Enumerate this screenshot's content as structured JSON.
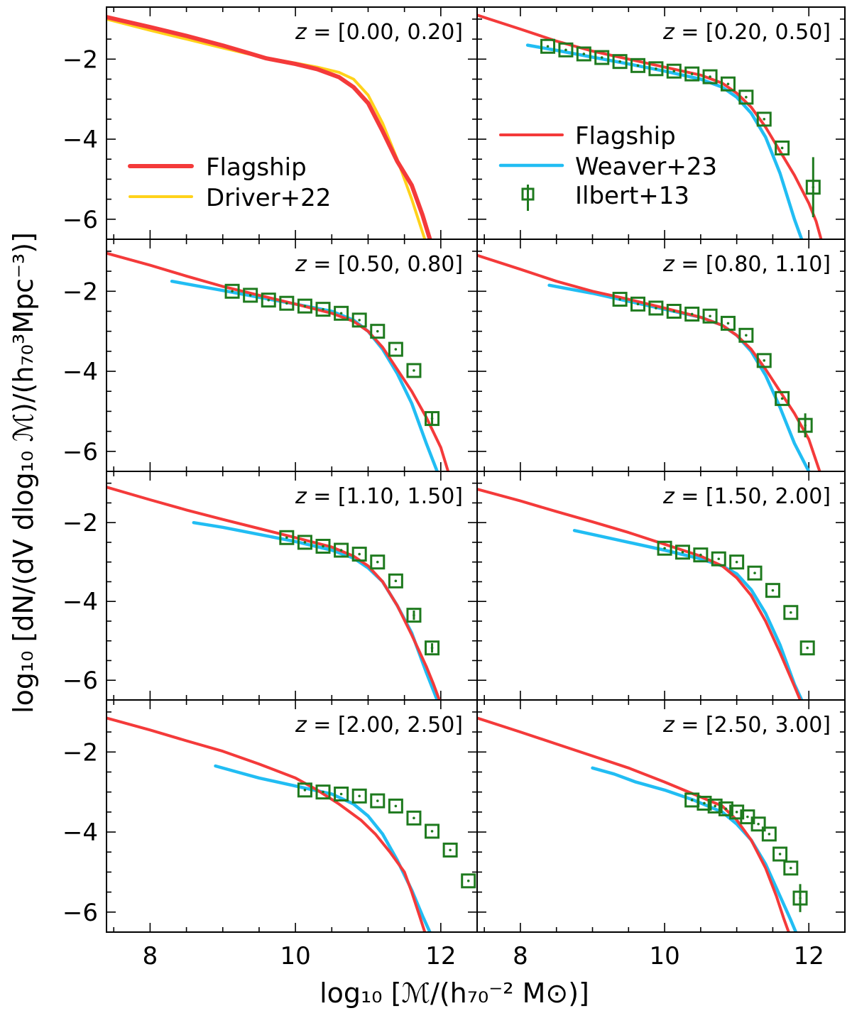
{
  "figure": {
    "xlabel": "log₁₀ [ℳ/(h₇₀⁻² M⊙)]",
    "ylabel": "log₁₀ [dN/(dV dlog₁₀ ℳ)/(h₇₀³Mpc⁻³)]",
    "colors": {
      "flagship": "#f43a3a",
      "driver": "#ffd21a",
      "weaver": "#21bdf3",
      "ilbert": "#1e7a1e"
    },
    "legend_left": {
      "items": [
        {
          "label": "Flagship",
          "series": "flagship"
        },
        {
          "label": "Driver+22",
          "series": "driver"
        }
      ]
    },
    "legend_right": {
      "items": [
        {
          "label": "Flagship",
          "series": "flagship"
        },
        {
          "label": "Weaver+23",
          "series": "weaver"
        },
        {
          "label": "Ilbert+13",
          "series": "ilbert"
        }
      ]
    }
  },
  "chart_data": [
    {
      "type": "line",
      "title": "z = [0.00, 0.20]",
      "xlim": [
        7.4,
        12.5
      ],
      "ylim": [
        -6.5,
        -0.7
      ],
      "xticks": [
        8,
        10,
        12
      ],
      "yticks": [
        -2,
        -4,
        -6
      ],
      "series": [
        {
          "name": "Flagship",
          "x": [
            7.4,
            8,
            8.5,
            9,
            9.3,
            9.6,
            10,
            10.3,
            10.6,
            10.8,
            11,
            11.2,
            11.4,
            11.6,
            11.75,
            11.85
          ],
          "y": [
            -0.95,
            -1.2,
            -1.42,
            -1.66,
            -1.82,
            -1.98,
            -2.12,
            -2.25,
            -2.45,
            -2.7,
            -3.1,
            -3.8,
            -4.55,
            -5.15,
            -5.9,
            -6.5
          ]
        },
        {
          "name": "Driver+22",
          "x": [
            7.4,
            8,
            8.5,
            9,
            9.3,
            9.6,
            10,
            10.3,
            10.6,
            10.8,
            11,
            11.2,
            11.4,
            11.6,
            11.78
          ],
          "y": [
            -1.0,
            -1.28,
            -1.5,
            -1.72,
            -1.85,
            -1.97,
            -2.1,
            -2.2,
            -2.33,
            -2.5,
            -2.9,
            -3.6,
            -4.5,
            -5.5,
            -6.5
          ]
        }
      ]
    },
    {
      "type": "line",
      "title": "z = [0.20, 0.50]",
      "xlim": [
        7.4,
        12.5
      ],
      "ylim": [
        -6.5,
        -0.7
      ],
      "xticks": [
        8,
        10,
        12
      ],
      "yticks": [
        -2,
        -4,
        -6
      ],
      "series": [
        {
          "name": "Flagship",
          "x": [
            7.4,
            8,
            8.5,
            9,
            9.5,
            10,
            10.5,
            10.8,
            11,
            11.2,
            11.4,
            11.6,
            11.8,
            12,
            12.1,
            12.17
          ],
          "y": [
            -0.9,
            -1.25,
            -1.55,
            -1.8,
            -2.0,
            -2.2,
            -2.4,
            -2.6,
            -2.85,
            -3.2,
            -3.7,
            -4.3,
            -4.9,
            -5.6,
            -6.05,
            -6.5
          ]
        },
        {
          "name": "Weaver+23",
          "x": [
            8.1,
            8.5,
            9,
            9.5,
            10,
            10.5,
            10.8,
            11,
            11.2,
            11.4,
            11.6,
            11.8,
            11.9
          ],
          "y": [
            -1.65,
            -1.78,
            -1.95,
            -2.12,
            -2.3,
            -2.5,
            -2.7,
            -2.95,
            -3.35,
            -3.95,
            -4.85,
            -6.0,
            -6.5
          ]
        },
        {
          "name": "Ilbert+13",
          "x": [
            8.38,
            8.63,
            8.88,
            9.13,
            9.38,
            9.63,
            9.88,
            10.13,
            10.38,
            10.63,
            10.88,
            11.13,
            11.38,
            11.63,
            12.06
          ],
          "y": [
            -1.68,
            -1.77,
            -1.87,
            -1.96,
            -2.06,
            -2.16,
            -2.24,
            -2.3,
            -2.37,
            -2.44,
            -2.62,
            -2.95,
            -3.5,
            -4.22,
            -5.2
          ],
          "yerr": [
            0,
            0,
            0,
            0,
            0,
            0,
            0,
            0,
            0,
            0,
            0,
            0,
            0,
            0,
            0.75
          ]
        }
      ]
    },
    {
      "type": "line",
      "title": "z = [0.50, 0.80]",
      "xlim": [
        7.4,
        12.5
      ],
      "ylim": [
        -6.5,
        -0.7
      ],
      "xticks": [
        8,
        10,
        12
      ],
      "yticks": [
        -2,
        -4,
        -6
      ],
      "series": [
        {
          "name": "Flagship",
          "x": [
            7.4,
            8,
            8.5,
            9,
            9.5,
            10,
            10.5,
            10.8,
            11,
            11.2,
            11.4,
            11.6,
            11.8,
            12,
            12.1
          ],
          "y": [
            -1.05,
            -1.35,
            -1.62,
            -1.88,
            -2.1,
            -2.32,
            -2.55,
            -2.75,
            -3.0,
            -3.4,
            -3.95,
            -4.5,
            -5.15,
            -5.9,
            -6.5
          ]
        },
        {
          "name": "Weaver+23",
          "x": [
            8.3,
            8.6,
            9,
            9.5,
            10,
            10.5,
            10.8,
            11,
            11.2,
            11.4,
            11.6,
            11.8,
            11.95
          ],
          "y": [
            -1.75,
            -1.85,
            -1.98,
            -2.15,
            -2.32,
            -2.5,
            -2.72,
            -3.0,
            -3.45,
            -4.05,
            -4.8,
            -5.8,
            -6.5
          ]
        },
        {
          "name": "Ilbert+13",
          "x": [
            9.13,
            9.38,
            9.63,
            9.88,
            10.13,
            10.38,
            10.63,
            10.88,
            11.13,
            11.38,
            11.63,
            11.88
          ],
          "y": [
            -2.0,
            -2.1,
            -2.22,
            -2.3,
            -2.37,
            -2.45,
            -2.55,
            -2.72,
            -3.0,
            -3.45,
            -3.98,
            -5.18
          ],
          "yerr": [
            0,
            0,
            0,
            0,
            0,
            0,
            0,
            0,
            0,
            0,
            0,
            0.15
          ]
        }
      ]
    },
    {
      "type": "line",
      "title": "z = [0.80, 1.10]",
      "xlim": [
        7.4,
        12.5
      ],
      "ylim": [
        -6.5,
        -0.7
      ],
      "xticks": [
        8,
        10,
        12
      ],
      "yticks": [
        -2,
        -4,
        -6
      ],
      "series": [
        {
          "name": "Flagship",
          "x": [
            7.4,
            8,
            8.5,
            9,
            9.5,
            10,
            10.5,
            10.8,
            11,
            11.2,
            11.4,
            11.6,
            11.8,
            12,
            12.15
          ],
          "y": [
            -1.1,
            -1.45,
            -1.75,
            -2.0,
            -2.2,
            -2.42,
            -2.65,
            -2.85,
            -3.1,
            -3.45,
            -3.95,
            -4.5,
            -5.05,
            -5.7,
            -6.5
          ]
        },
        {
          "name": "Weaver+23",
          "x": [
            8.4,
            8.7,
            9,
            9.5,
            10,
            10.5,
            10.8,
            11,
            11.2,
            11.4,
            11.6,
            11.8,
            12.0
          ],
          "y": [
            -1.85,
            -1.95,
            -2.05,
            -2.25,
            -2.45,
            -2.65,
            -2.85,
            -3.1,
            -3.5,
            -4.1,
            -4.9,
            -5.8,
            -6.5
          ]
        },
        {
          "name": "Ilbert+13",
          "x": [
            9.38,
            9.63,
            9.88,
            10.13,
            10.38,
            10.63,
            10.88,
            11.13,
            11.38,
            11.63,
            11.95
          ],
          "y": [
            -2.2,
            -2.32,
            -2.42,
            -2.5,
            -2.57,
            -2.62,
            -2.8,
            -3.1,
            -3.73,
            -4.68,
            -5.35
          ],
          "yerr": [
            0,
            0,
            0,
            0,
            0,
            0,
            0,
            0,
            0,
            0,
            0.3
          ]
        }
      ]
    },
    {
      "type": "line",
      "title": "z = [1.10, 1.50]",
      "xlim": [
        7.4,
        12.5
      ],
      "ylim": [
        -6.5,
        -0.7
      ],
      "xticks": [
        8,
        10,
        12
      ],
      "yticks": [
        -2,
        -4,
        -6
      ],
      "series": [
        {
          "name": "Flagship",
          "x": [
            7.4,
            8,
            8.5,
            9,
            9.5,
            10,
            10.5,
            10.8,
            11,
            11.2,
            11.4,
            11.6,
            11.8,
            11.9,
            11.98
          ],
          "y": [
            -1.1,
            -1.42,
            -1.68,
            -1.92,
            -2.15,
            -2.38,
            -2.62,
            -2.85,
            -3.1,
            -3.5,
            -4.1,
            -4.85,
            -5.65,
            -6.1,
            -6.5
          ]
        },
        {
          "name": "Weaver+23",
          "x": [
            8.6,
            9,
            9.5,
            10,
            10.5,
            10.8,
            11,
            11.2,
            11.4,
            11.6,
            11.8,
            11.95
          ],
          "y": [
            -2.0,
            -2.12,
            -2.3,
            -2.48,
            -2.7,
            -2.9,
            -3.15,
            -3.5,
            -4.1,
            -4.8,
            -5.8,
            -6.5
          ]
        },
        {
          "name": "Ilbert+13",
          "x": [
            9.88,
            10.13,
            10.38,
            10.63,
            10.88,
            11.13,
            11.38,
            11.63,
            11.88
          ],
          "y": [
            -2.38,
            -2.5,
            -2.6,
            -2.7,
            -2.8,
            -3.0,
            -3.48,
            -4.35,
            -5.18
          ],
          "yerr": [
            0,
            0,
            0,
            0,
            0,
            0,
            0,
            0.12,
            0.12
          ]
        }
      ]
    },
    {
      "type": "line",
      "title": "z = [1.50, 2.00]",
      "xlim": [
        7.4,
        12.5
      ],
      "ylim": [
        -6.5,
        -0.7
      ],
      "xticks": [
        8,
        10,
        12
      ],
      "yticks": [
        -2,
        -4,
        -6
      ],
      "series": [
        {
          "name": "Flagship",
          "x": [
            7.4,
            8,
            8.5,
            9,
            9.5,
            10,
            10.5,
            10.8,
            11,
            11.2,
            11.4,
            11.6,
            11.8,
            11.88
          ],
          "y": [
            -1.15,
            -1.45,
            -1.72,
            -1.98,
            -2.25,
            -2.55,
            -2.85,
            -3.1,
            -3.4,
            -3.85,
            -4.5,
            -5.3,
            -6.15,
            -6.5
          ]
        },
        {
          "name": "Weaver+23",
          "x": [
            8.75,
            9,
            9.5,
            10,
            10.5,
            10.8,
            11,
            11.2,
            11.4,
            11.6,
            11.8,
            11.9
          ],
          "y": [
            -2.2,
            -2.3,
            -2.5,
            -2.7,
            -2.92,
            -3.1,
            -3.3,
            -3.7,
            -4.3,
            -5.1,
            -6.1,
            -6.5
          ]
        },
        {
          "name": "Ilbert+13",
          "x": [
            10.0,
            10.25,
            10.5,
            10.75,
            11.0,
            11.25,
            11.5,
            11.75
          ],
          "y": [
            -2.65,
            -2.75,
            -2.82,
            -2.92,
            -3.0,
            -3.28,
            -3.72,
            -4.28
          ],
          "yerr": [
            0,
            0,
            0,
            0,
            0,
            0,
            0,
            0
          ]
        },
        {
          "name": "Ilbert+13 (tail)",
          "x": [
            11.98
          ],
          "y": [
            -5.18
          ],
          "yerr": [
            0
          ]
        }
      ]
    },
    {
      "type": "line",
      "title": "z = [2.00, 2.50]",
      "xlim": [
        7.4,
        12.5
      ],
      "ylim": [
        -6.5,
        -0.7
      ],
      "xticks": [
        8,
        10,
        12
      ],
      "yticks": [
        -2,
        -4,
        -6
      ],
      "series": [
        {
          "name": "Flagship",
          "x": [
            7.4,
            8,
            8.5,
            9,
            9.5,
            10,
            10.3,
            10.6,
            10.9,
            11.1,
            11.3,
            11.5,
            11.6,
            11.7,
            11.78
          ],
          "y": [
            -1.15,
            -1.45,
            -1.72,
            -1.98,
            -2.3,
            -2.65,
            -2.95,
            -3.3,
            -3.7,
            -4.05,
            -4.5,
            -5.0,
            -5.5,
            -6.05,
            -6.5
          ]
        },
        {
          "name": "Weaver+23",
          "x": [
            8.9,
            9.2,
            9.5,
            10,
            10.5,
            10.8,
            11,
            11.2,
            11.4,
            11.6,
            11.75,
            11.85
          ],
          "y": [
            -2.35,
            -2.5,
            -2.65,
            -2.85,
            -3.05,
            -3.3,
            -3.6,
            -4.05,
            -4.7,
            -5.45,
            -6.1,
            -6.5
          ]
        },
        {
          "name": "Ilbert+13",
          "x": [
            10.13,
            10.38,
            10.63,
            10.88,
            11.13,
            11.38,
            11.63,
            11.88,
            12.13,
            12.38
          ],
          "y": [
            -2.95,
            -3.0,
            -3.05,
            -3.1,
            -3.22,
            -3.35,
            -3.65,
            -3.98,
            -4.45,
            -5.22
          ],
          "yerr": [
            0,
            0,
            0,
            0,
            0,
            0,
            0,
            0,
            0,
            0
          ]
        }
      ]
    },
    {
      "type": "line",
      "title": "z = [2.50, 3.00]",
      "xlim": [
        7.4,
        12.5
      ],
      "ylim": [
        -6.5,
        -0.7
      ],
      "xticks": [
        8,
        10,
        12
      ],
      "yticks": [
        -2,
        -4,
        -6
      ],
      "series": [
        {
          "name": "Flagship",
          "x": [
            7.4,
            8,
            8.5,
            9,
            9.5,
            10,
            10.4,
            10.8,
            11,
            11.2,
            11.4,
            11.55,
            11.65,
            11.72
          ],
          "y": [
            -1.15,
            -1.5,
            -1.8,
            -2.1,
            -2.4,
            -2.75,
            -3.05,
            -3.35,
            -3.7,
            -4.2,
            -4.9,
            -5.6,
            -6.15,
            -6.5
          ]
        },
        {
          "name": "Weaver+23",
          "x": [
            9.0,
            9.3,
            9.6,
            10,
            10.4,
            10.8,
            11,
            11.2,
            11.4,
            11.6,
            11.75,
            11.82
          ],
          "y": [
            -2.4,
            -2.55,
            -2.75,
            -2.95,
            -3.2,
            -3.5,
            -3.8,
            -4.2,
            -4.8,
            -5.6,
            -6.2,
            -6.5
          ]
        },
        {
          "name": "Ilbert+13",
          "x": [
            10.38,
            10.55,
            10.7,
            10.85,
            11.0,
            11.15,
            11.3,
            11.45,
            11.6,
            11.75,
            11.88
          ],
          "y": [
            -3.2,
            -3.28,
            -3.35,
            -3.42,
            -3.5,
            -3.62,
            -3.8,
            -4.05,
            -4.55,
            -4.9,
            -5.65
          ],
          "yerr": [
            0,
            0,
            0,
            0,
            0,
            0,
            0,
            0,
            0,
            0,
            0.35
          ]
        }
      ]
    }
  ]
}
